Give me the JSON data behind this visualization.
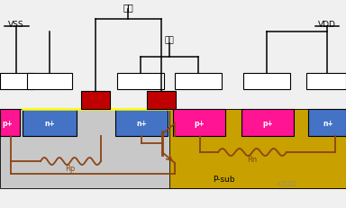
{
  "bg_color": "#f0f0f0",
  "figsize": [
    3.84,
    2.32
  ],
  "dpi": 100,
  "p_sub_color": "#c8c8c8",
  "nwell_color": "#c8a000",
  "blue_color": "#4472c4",
  "red_color": "#c00000",
  "pink_color": "#ff1493",
  "yellow_line": "#ffff00",
  "brown_color": "#8B4513",
  "white_color": "#ffffff",
  "labels": {
    "input": "输入",
    "output": "输出",
    "vss": "VSS",
    "vdd": "VDD",
    "psub": "P-sub",
    "rp": "Rp",
    "rn": "Rn",
    "watermark": "IC技能搞运"
  }
}
